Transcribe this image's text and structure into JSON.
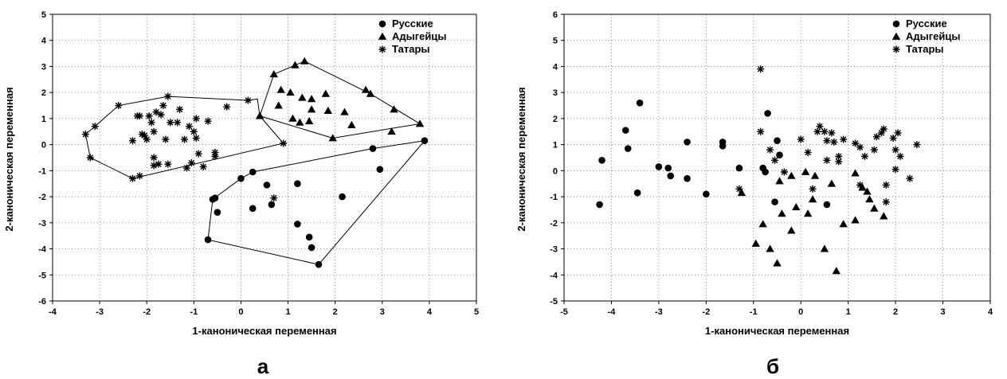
{
  "chart_data": [
    {
      "type": "scatter",
      "panel_label": "а",
      "xlabel": "1-каноническая переменная",
      "ylabel": "2-каноническая переменная",
      "xlim": [
        -4,
        5
      ],
      "ylim": [
        -6,
        5
      ],
      "xticks": [
        "-4",
        "-3",
        "-2",
        "-1",
        "0",
        "1",
        "2",
        "3",
        "4",
        "5"
      ],
      "yticks": [
        "-6",
        "-5",
        "-4",
        "-3",
        "-2",
        "-1",
        "0",
        "1",
        "2",
        "3",
        "4",
        "5"
      ],
      "grid": true,
      "legend_position": "top-right",
      "series": [
        {
          "name": "Русские",
          "marker": "circle",
          "points": [
            [
              3.9,
              0.15
            ],
            [
              2.8,
              -0.15
            ],
            [
              2.95,
              -0.95
            ],
            [
              0.25,
              -1.05
            ],
            [
              0.0,
              -1.3
            ],
            [
              0.55,
              -1.55
            ],
            [
              1.2,
              -1.5
            ],
            [
              0.65,
              -2.3
            ],
            [
              0.25,
              -2.45
            ],
            [
              -0.55,
              -2.05
            ],
            [
              -0.6,
              -2.1
            ],
            [
              -0.5,
              -2.6
            ],
            [
              2.15,
              -2.0
            ],
            [
              1.2,
              -3.05
            ],
            [
              1.45,
              -3.55
            ],
            [
              1.5,
              -3.95
            ],
            [
              -0.7,
              -3.65
            ],
            [
              1.65,
              -4.6
            ]
          ]
        },
        {
          "name": "Адыгейцы",
          "marker": "triangle",
          "points": [
            [
              0.7,
              2.7
            ],
            [
              1.15,
              3.05
            ],
            [
              1.35,
              3.2
            ],
            [
              0.85,
              2.1
            ],
            [
              0.8,
              1.5
            ],
            [
              1.05,
              2.0
            ],
            [
              1.3,
              1.8
            ],
            [
              1.5,
              1.75
            ],
            [
              1.5,
              1.35
            ],
            [
              1.8,
              1.95
            ],
            [
              1.85,
              1.3
            ],
            [
              1.1,
              1.0
            ],
            [
              1.25,
              0.85
            ],
            [
              1.45,
              0.9
            ],
            [
              2.2,
              1.25
            ],
            [
              2.35,
              0.75
            ],
            [
              2.65,
              2.1
            ],
            [
              2.75,
              1.95
            ],
            [
              3.25,
              1.35
            ],
            [
              3.8,
              0.8
            ],
            [
              1.95,
              0.25
            ],
            [
              3.2,
              0.5
            ],
            [
              0.4,
              1.1
            ]
          ]
        },
        {
          "name": "Татары",
          "marker": "asterisk",
          "points": [
            [
              -3.3,
              0.4
            ],
            [
              -3.2,
              -0.5
            ],
            [
              -3.1,
              0.7
            ],
            [
              -2.6,
              1.5
            ],
            [
              -2.3,
              -1.3
            ],
            [
              -2.2,
              1.1
            ],
            [
              -2.15,
              1.1
            ],
            [
              -2.1,
              0.4
            ],
            [
              -2.05,
              0.35
            ],
            [
              -2.0,
              0.2
            ],
            [
              -2.15,
              -1.2
            ],
            [
              -2.3,
              0.15
            ],
            [
              -1.95,
              1.1
            ],
            [
              -1.9,
              0.85
            ],
            [
              -1.85,
              0.5
            ],
            [
              -1.8,
              1.25
            ],
            [
              -1.85,
              -0.5
            ],
            [
              -1.85,
              -0.8
            ],
            [
              -1.75,
              -0.75
            ],
            [
              -1.7,
              1.15
            ],
            [
              -1.65,
              1.5
            ],
            [
              -1.6,
              0.2
            ],
            [
              -1.55,
              1.85
            ],
            [
              -1.55,
              -0.75
            ],
            [
              -1.5,
              0.85
            ],
            [
              -1.35,
              0.85
            ],
            [
              -1.3,
              1.35
            ],
            [
              -1.2,
              0.2
            ],
            [
              -1.15,
              -0.9
            ],
            [
              -1.1,
              0.7
            ],
            [
              -1.05,
              -0.7
            ],
            [
              -1.0,
              0.5
            ],
            [
              -0.95,
              1.0
            ],
            [
              -0.95,
              0.25
            ],
            [
              -0.9,
              -0.35
            ],
            [
              -0.8,
              -0.85
            ],
            [
              -0.7,
              0.9
            ],
            [
              -0.55,
              -0.3
            ],
            [
              -0.55,
              -0.45
            ],
            [
              -0.3,
              1.45
            ],
            [
              0.15,
              1.7
            ],
            [
              0.9,
              0.05
            ],
            [
              0.7,
              -2.05
            ]
          ]
        }
      ],
      "hulls": [
        {
          "series": "Русские",
          "points": [
            [
              0.0,
              -1.3
            ],
            [
              0.25,
              -1.05
            ],
            [
              2.8,
              -0.15
            ],
            [
              3.9,
              0.15
            ],
            [
              1.65,
              -4.6
            ],
            [
              -0.7,
              -3.65
            ],
            [
              -0.6,
              -2.1
            ]
          ]
        },
        {
          "series": "Адыгейцы",
          "points": [
            [
              0.4,
              1.1
            ],
            [
              0.7,
              2.7
            ],
            [
              1.15,
              3.05
            ],
            [
              1.35,
              3.2
            ],
            [
              2.75,
              1.95
            ],
            [
              3.8,
              0.8
            ],
            [
              1.95,
              0.25
            ]
          ]
        },
        {
          "series": "Татары",
          "points": [
            [
              -3.3,
              0.4
            ],
            [
              -3.1,
              0.7
            ],
            [
              -2.6,
              1.5
            ],
            [
              -1.55,
              1.85
            ],
            [
              0.15,
              1.7
            ],
            [
              0.35,
              1.75
            ],
            [
              0.4,
              1.1
            ],
            [
              0.9,
              0.05
            ],
            [
              -2.3,
              -1.3
            ],
            [
              -3.2,
              -0.5
            ]
          ]
        }
      ]
    },
    {
      "type": "scatter",
      "panel_label": "б",
      "xlabel": "1-каноническая переменная",
      "ylabel": "2-каноническая переменная",
      "xlim": [
        -5,
        4
      ],
      "ylim": [
        -5,
        6
      ],
      "xticks": [
        "-5",
        "-4",
        "-3",
        "-2",
        "-1",
        "0",
        "1",
        "2",
        "3",
        "4"
      ],
      "yticks": [
        "-5",
        "-4",
        "-3",
        "-2",
        "-1",
        "0",
        "1",
        "2",
        "3",
        "4",
        "5",
        "6"
      ],
      "grid": true,
      "legend_position": "top-right",
      "series": [
        {
          "name": "Русские",
          "marker": "circle",
          "points": [
            [
              -4.2,
              0.4
            ],
            [
              -4.25,
              -1.3
            ],
            [
              -3.7,
              1.55
            ],
            [
              -3.65,
              0.85
            ],
            [
              -3.4,
              2.6
            ],
            [
              -3.45,
              -0.85
            ],
            [
              -3.0,
              0.15
            ],
            [
              -2.8,
              0.1
            ],
            [
              -2.75,
              -0.2
            ],
            [
              -2.4,
              1.1
            ],
            [
              -2.4,
              -0.3
            ],
            [
              -2.0,
              -0.9
            ],
            [
              -1.65,
              0.95
            ],
            [
              -1.65,
              1.1
            ],
            [
              -1.3,
              0.1
            ],
            [
              -0.8,
              0.1
            ],
            [
              -0.75,
              -0.05
            ],
            [
              -0.7,
              2.2
            ],
            [
              -0.55,
              -1.2
            ],
            [
              -0.5,
              1.15
            ],
            [
              -0.45,
              0.6
            ],
            [
              0.55,
              -1.3
            ]
          ]
        },
        {
          "name": "Адыгейцы",
          "marker": "triangle",
          "points": [
            [
              -1.25,
              -0.85
            ],
            [
              -0.95,
              -2.8
            ],
            [
              -0.8,
              -2.05
            ],
            [
              -0.65,
              -3.0
            ],
            [
              -0.5,
              -3.55
            ],
            [
              -0.4,
              -1.65
            ],
            [
              -0.45,
              -0.4
            ],
            [
              -0.2,
              -0.2
            ],
            [
              -0.2,
              -2.3
            ],
            [
              -0.1,
              -1.4
            ],
            [
              0.1,
              -0.05
            ],
            [
              0.15,
              -1.65
            ],
            [
              0.25,
              -1.1
            ],
            [
              0.3,
              -0.2
            ],
            [
              0.5,
              -3.0
            ],
            [
              0.65,
              -0.5
            ],
            [
              0.75,
              -3.85
            ],
            [
              0.9,
              -2.05
            ],
            [
              1.15,
              -0.1
            ],
            [
              1.15,
              -1.9
            ],
            [
              1.3,
              -0.65
            ],
            [
              1.4,
              -0.8
            ],
            [
              1.45,
              -1.1
            ],
            [
              1.55,
              -1.45
            ],
            [
              1.75,
              -1.75
            ]
          ]
        },
        {
          "name": "Татары",
          "marker": "asterisk",
          "points": [
            [
              -0.85,
              3.9
            ],
            [
              -0.85,
              1.5
            ],
            [
              -0.65,
              0.8
            ],
            [
              -0.55,
              0.4
            ],
            [
              -0.35,
              -0.05
            ],
            [
              0.0,
              1.2
            ],
            [
              0.15,
              0.7
            ],
            [
              0.35,
              1.5
            ],
            [
              0.4,
              1.7
            ],
            [
              0.5,
              1.5
            ],
            [
              0.55,
              1.15
            ],
            [
              0.55,
              0.4
            ],
            [
              0.65,
              1.45
            ],
            [
              0.7,
              1.1
            ],
            [
              0.8,
              0.55
            ],
            [
              0.8,
              0.35
            ],
            [
              0.9,
              1.2
            ],
            [
              0.25,
              -0.7
            ],
            [
              1.15,
              1.05
            ],
            [
              1.25,
              0.9
            ],
            [
              1.35,
              0.55
            ],
            [
              1.55,
              0.8
            ],
            [
              1.6,
              1.3
            ],
            [
              1.7,
              1.45
            ],
            [
              1.75,
              1.6
            ],
            [
              1.8,
              -1.2
            ],
            [
              1.95,
              1.25
            ],
            [
              2.0,
              0.8
            ],
            [
              2.0,
              0.05
            ],
            [
              2.05,
              1.45
            ],
            [
              2.1,
              0.55
            ],
            [
              2.3,
              -0.3
            ],
            [
              2.45,
              1.0
            ],
            [
              1.25,
              -0.55
            ],
            [
              1.8,
              -0.55
            ],
            [
              -1.3,
              -0.7
            ]
          ]
        }
      ]
    }
  ]
}
